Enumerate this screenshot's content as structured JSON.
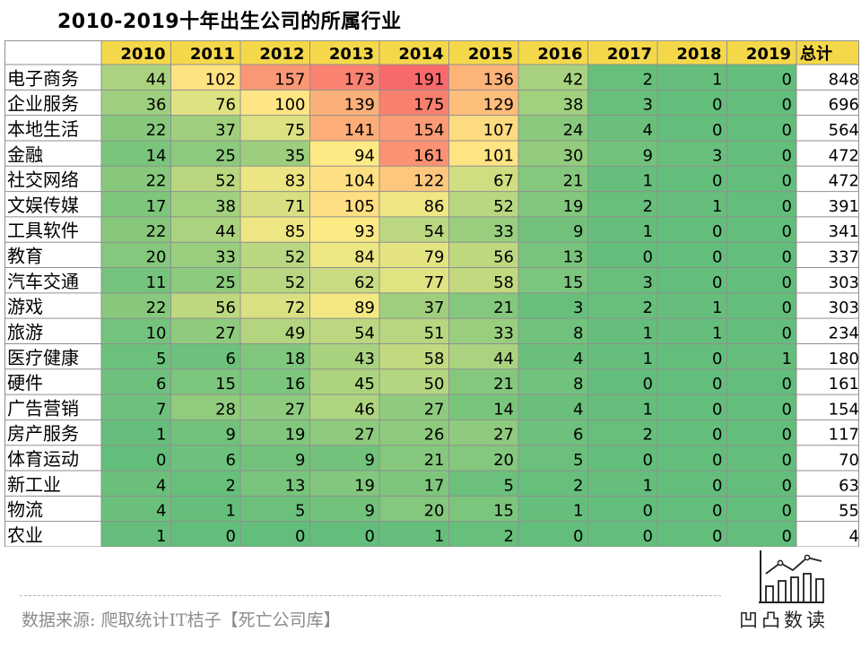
{
  "title": "2010-2019十年出生公司的所属行业",
  "source": "数据来源: 爬取统计IT桔子【死亡公司库】",
  "logo_text": "凹凸数读",
  "logo_icon": "line-bar-chart-icon",
  "chart_data": {
    "type": "heatmap",
    "header_color": "#f5d84a",
    "total_label": "总计",
    "years": [
      "2010",
      "2011",
      "2012",
      "2013",
      "2014",
      "2015",
      "2016",
      "2017",
      "2018",
      "2019"
    ],
    "rows": [
      {
        "industry": "电子商务",
        "values": [
          44,
          102,
          157,
          173,
          191,
          136,
          42,
          2,
          1,
          0
        ],
        "total": 848
      },
      {
        "industry": "企业服务",
        "values": [
          36,
          76,
          100,
          139,
          175,
          129,
          38,
          3,
          0,
          0
        ],
        "total": 696
      },
      {
        "industry": "本地生活",
        "values": [
          22,
          37,
          75,
          141,
          154,
          107,
          24,
          4,
          0,
          0
        ],
        "total": 564
      },
      {
        "industry": "金融",
        "values": [
          14,
          25,
          35,
          94,
          161,
          101,
          30,
          9,
          3,
          0
        ],
        "total": 472
      },
      {
        "industry": "社交网络",
        "values": [
          22,
          52,
          83,
          104,
          122,
          67,
          21,
          1,
          0,
          0
        ],
        "total": 472
      },
      {
        "industry": "文娱传媒",
        "values": [
          17,
          38,
          71,
          105,
          86,
          52,
          19,
          2,
          1,
          0
        ],
        "total": 391
      },
      {
        "industry": "工具软件",
        "values": [
          22,
          44,
          85,
          93,
          54,
          33,
          9,
          1,
          0,
          0
        ],
        "total": 341
      },
      {
        "industry": "教育",
        "values": [
          20,
          33,
          52,
          84,
          79,
          56,
          13,
          0,
          0,
          0
        ],
        "total": 337
      },
      {
        "industry": "汽车交通",
        "values": [
          11,
          25,
          52,
          62,
          77,
          58,
          15,
          3,
          0,
          0
        ],
        "total": 303
      },
      {
        "industry": "游戏",
        "values": [
          22,
          56,
          72,
          89,
          37,
          21,
          3,
          2,
          1,
          0
        ],
        "total": 303
      },
      {
        "industry": "旅游",
        "values": [
          10,
          27,
          49,
          54,
          51,
          33,
          8,
          1,
          1,
          0
        ],
        "total": 234
      },
      {
        "industry": "医疗健康",
        "values": [
          5,
          6,
          18,
          43,
          58,
          44,
          4,
          1,
          0,
          1
        ],
        "total": 180
      },
      {
        "industry": "硬件",
        "values": [
          6,
          15,
          16,
          45,
          50,
          21,
          8,
          0,
          0,
          0
        ],
        "total": 161
      },
      {
        "industry": "广告营销",
        "values": [
          7,
          28,
          27,
          46,
          27,
          14,
          4,
          1,
          0,
          0
        ],
        "total": 154
      },
      {
        "industry": "房产服务",
        "values": [
          1,
          9,
          19,
          27,
          26,
          27,
          6,
          2,
          0,
          0
        ],
        "total": 117
      },
      {
        "industry": "体育运动",
        "values": [
          0,
          6,
          9,
          9,
          21,
          20,
          5,
          0,
          0,
          0
        ],
        "total": 70
      },
      {
        "industry": "新工业",
        "values": [
          4,
          2,
          13,
          19,
          17,
          5,
          2,
          1,
          0,
          0
        ],
        "total": 63
      },
      {
        "industry": "物流",
        "values": [
          4,
          1,
          5,
          9,
          20,
          15,
          1,
          0,
          0,
          0
        ],
        "total": 55
      },
      {
        "industry": "农业",
        "values": [
          1,
          0,
          0,
          0,
          1,
          2,
          0,
          0,
          0,
          0
        ],
        "total": 4
      }
    ],
    "colorscale": [
      "#63be7b",
      "#ffeb84",
      "#f8696b"
    ]
  }
}
